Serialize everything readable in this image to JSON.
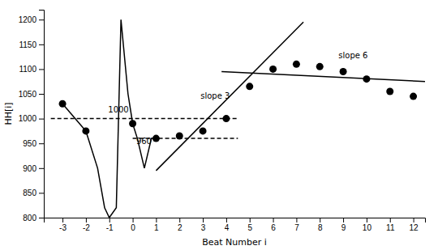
{
  "chart_data": {
    "type": "line",
    "xlabel": "Beat Number i",
    "ylabel": "HH[i]",
    "xlim": [
      -3.8,
      12.5
    ],
    "ylim": [
      800,
      1220
    ],
    "xticks": [
      -3,
      -2,
      -1,
      0,
      1,
      2,
      3,
      4,
      5,
      6,
      7,
      8,
      9,
      10,
      11,
      12
    ],
    "yticks": [
      800,
      850,
      900,
      950,
      1000,
      1050,
      1100,
      1150,
      1200
    ],
    "grid": false,
    "series": [
      {
        "type": "line",
        "line_style": "solid",
        "color": "#000000",
        "x": [
          -3,
          -2
        ],
        "values": [
          1030,
          975
        ]
      },
      {
        "type": "line",
        "line_style": "solid",
        "color": "#000000",
        "x": [
          -2,
          -1.5,
          -1.2,
          -1.0,
          -0.7,
          -0.5,
          -0.2,
          0.0,
          0.2,
          0.5,
          0.8,
          1.0
        ],
        "values": [
          975,
          900,
          820,
          800,
          820,
          1200,
          1050,
          990,
          960,
          900,
          960,
          960
        ]
      },
      {
        "type": "scatter",
        "marker": "circle",
        "color": "#000000",
        "x": [
          -3,
          -2,
          0,
          1,
          2,
          3,
          4,
          5,
          6,
          7,
          8,
          9,
          10,
          11,
          12
        ],
        "values": [
          1030,
          975,
          990,
          960,
          965,
          975,
          1000,
          1065,
          1100,
          1110,
          1105,
          1095,
          1080,
          1055,
          1045
        ]
      },
      {
        "type": "line",
        "line_style": "dashed",
        "color": "#000000",
        "x": [
          -3.5,
          4.5
        ],
        "values": [
          1000,
          1000
        ]
      },
      {
        "type": "line",
        "line_style": "dashed",
        "color": "#000000",
        "x": [
          0.0,
          4.5
        ],
        "values": [
          960,
          960
        ]
      },
      {
        "type": "line",
        "line_style": "solid",
        "color": "#000000",
        "x": [
          1.0,
          7.3
        ],
        "values": [
          895,
          1195
        ]
      },
      {
        "type": "line",
        "line_style": "solid",
        "color": "#000000",
        "x": [
          3.8,
          12.5
        ],
        "values": [
          1095,
          1075
        ]
      }
    ],
    "annotations": [
      {
        "text": "1000",
        "x": -1.05,
        "y": 1012
      },
      {
        "text": "960",
        "x": 0.15,
        "y": 948
      },
      {
        "text": "slope 3",
        "x": 2.9,
        "y": 1040
      },
      {
        "text": "slope 6",
        "x": 8.8,
        "y": 1122
      }
    ]
  }
}
